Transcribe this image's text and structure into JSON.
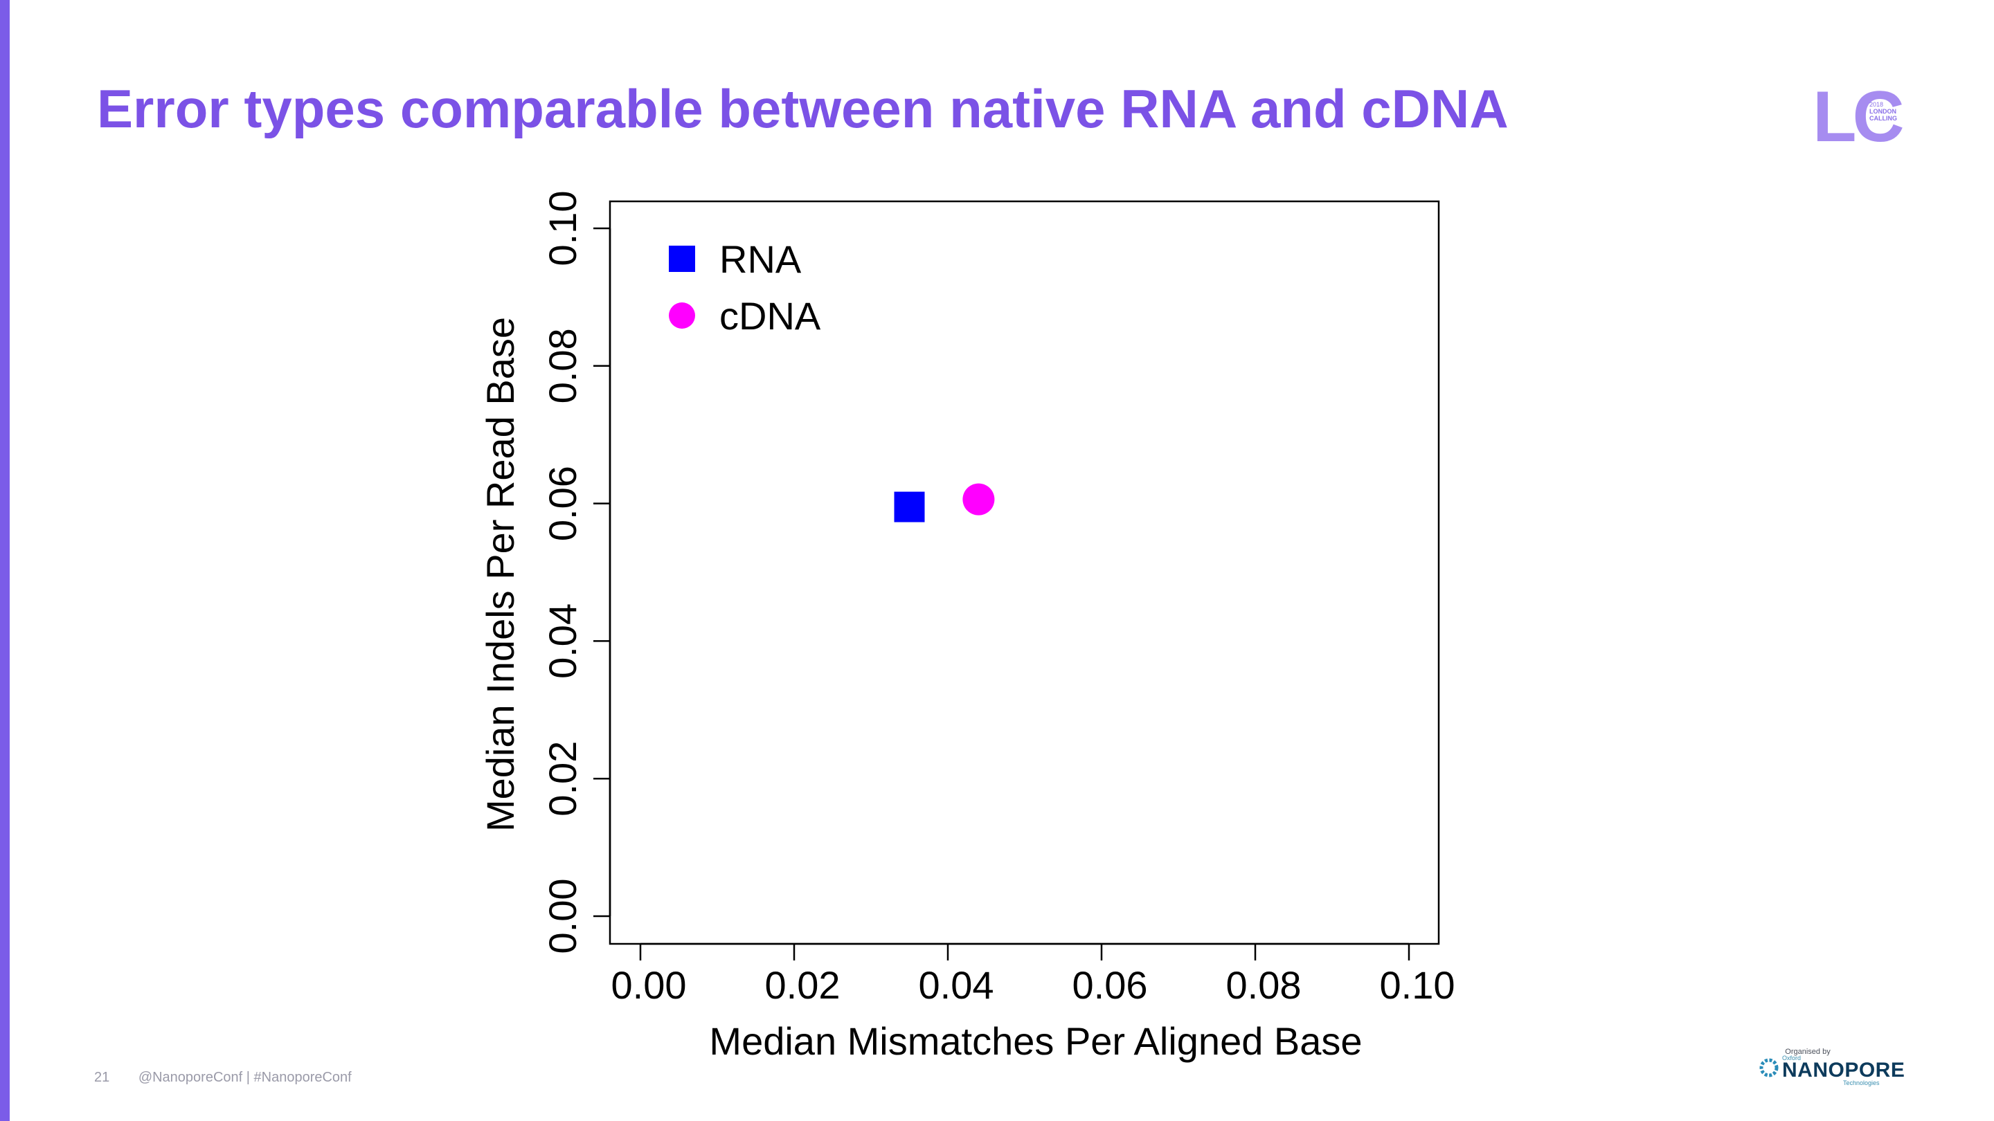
{
  "slide": {
    "title": "Error types comparable between native RNA and cDNA",
    "page_number": "21",
    "footer_text": "@NanoporeConf | #NanoporeConf",
    "accent_color": "#7b52e6"
  },
  "logo": {
    "letters": "LC",
    "year": "2018",
    "line1": "LONDON",
    "line2": "CALLING"
  },
  "organiser": {
    "label": "Organised by",
    "sub": "Oxford",
    "name": "NANOPORE",
    "tagline": "Technologies"
  },
  "chart_data": {
    "type": "scatter",
    "xlabel": "Median Mismatches Per Aligned Base",
    "ylabel": "Median Indels Per Read Base",
    "xlim": [
      0,
      0.1
    ],
    "ylim": [
      0,
      0.1
    ],
    "xticks": [
      "0.00",
      "0.02",
      "0.04",
      "0.06",
      "0.08",
      "0.10"
    ],
    "yticks": [
      "0.00",
      "0.02",
      "0.04",
      "0.06",
      "0.08",
      "0.10"
    ],
    "grid": false,
    "legend_position": "top-left",
    "series": [
      {
        "name": "RNA",
        "marker": "square",
        "color": "#0000ff",
        "x": [
          0.035
        ],
        "y": [
          0.0595
        ]
      },
      {
        "name": "cDNA",
        "marker": "circle",
        "color": "#ff00ff",
        "x": [
          0.044
        ],
        "y": [
          0.0606
        ]
      }
    ]
  }
}
